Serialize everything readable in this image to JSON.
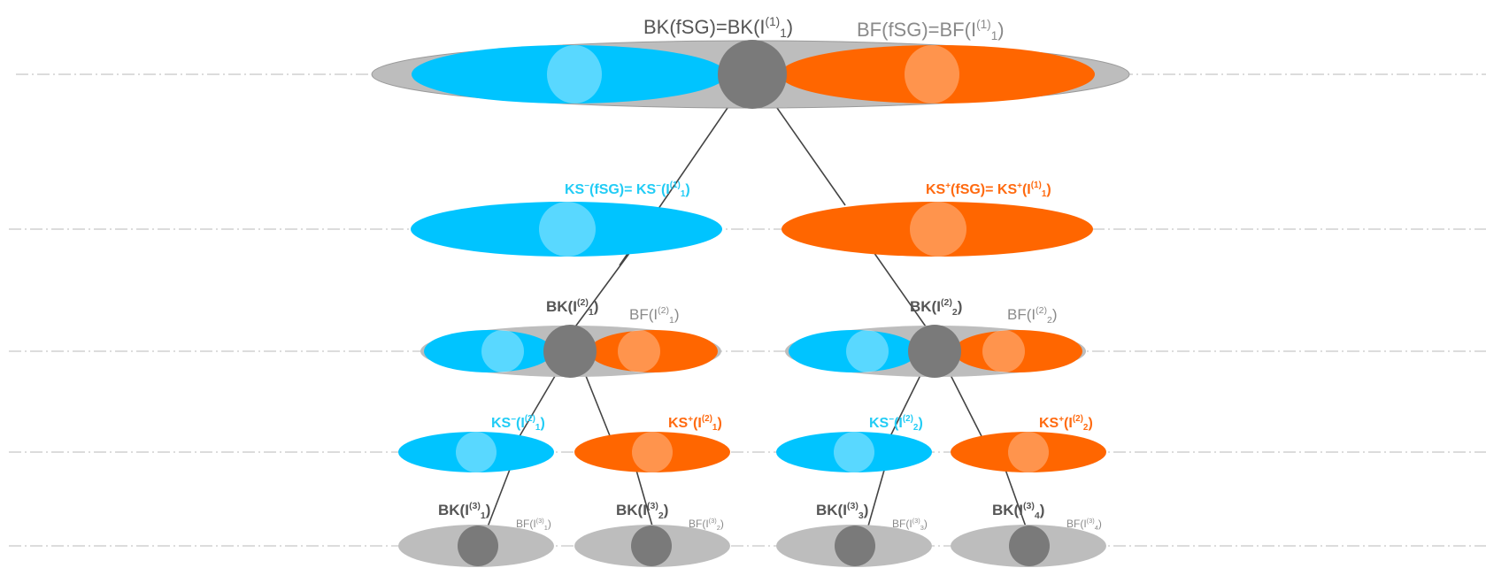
{
  "colors": {
    "blue": "#00C4FF",
    "orange": "#FF6600",
    "node_gray": "#7A7A7A",
    "halo_gray": "#BDBDBD",
    "text_dark": "#555555",
    "text_gray": "#7F7F7F",
    "dash_line": "#C8C8C8",
    "edge": "#444444"
  },
  "labels": {
    "root_bk": {
      "main": "BK(fSG)=BK(I",
      "sup": "(1)",
      "sub": "1",
      "close": ")"
    },
    "root_bf": {
      "main": "BF(fSG)=BF(I",
      "sup": "(1)",
      "sub": "1",
      "close": ")"
    },
    "ks_minus_root": {
      "main": "KS",
      "sup1": "−",
      "mid": "(fSG)= KS",
      "sup2": "−",
      "tail": "(I",
      "sup3": "(1)",
      "sub": "1",
      "close": ")"
    },
    "ks_plus_root": {
      "main": "KS",
      "sup1": "+",
      "mid": "(fSG)= KS",
      "sup2": "+",
      "tail": "(I",
      "sup3": "(1)",
      "sub": "1",
      "close": ")"
    },
    "l2_bk_1": {
      "main": "BK(I",
      "sup": "(2)",
      "sub": "1",
      "close": ")"
    },
    "l2_bf_1": {
      "main": "BF(I",
      "sup": "(2)",
      "sub": "1",
      "close": ")"
    },
    "l2_bk_2": {
      "main": "BK(I",
      "sup": "(2)",
      "sub": "2",
      "close": ")"
    },
    "l2_bf_2": {
      "main": "BF(I",
      "sup": "(2)",
      "sub": "2",
      "close": ")"
    },
    "ks_minus_1": {
      "main": "KS",
      "sup1": "−",
      "tail": "(I",
      "sup2": "(2)",
      "sub": "1",
      "close": ")"
    },
    "ks_plus_1": {
      "main": "KS",
      "sup1": "+",
      "tail": "(I",
      "sup2": "(2)",
      "sub": "1",
      "close": ")"
    },
    "ks_minus_2": {
      "main": "KS",
      "sup1": "−",
      "tail": "(I",
      "sup2": "(2)",
      "sub": "2",
      "close": ")"
    },
    "ks_plus_2": {
      "main": "KS",
      "sup1": "+",
      "tail": "(I",
      "sup2": "(2)",
      "sub": "2",
      "close": ")"
    },
    "l3_bk_1": {
      "main": "BK(I",
      "sup": "(3)",
      "sub": "1",
      "close": ")"
    },
    "l3_bf_1": {
      "main": "BF(I",
      "sup": "(3)",
      "sub": "1",
      "close": ")"
    },
    "l3_bk_2": {
      "main": "BK(I",
      "sup": "(3)",
      "sub": "2",
      "close": ")"
    },
    "l3_bf_2": {
      "main": "BF(I",
      "sup": "(3)",
      "sub": "2",
      "close": ")"
    },
    "l3_bk_3": {
      "main": "BK(I",
      "sup": "(3)",
      "sub": "3",
      "close": ")"
    },
    "l3_bf_3": {
      "main": "BF(I",
      "sup": "(3)",
      "sub": "3",
      "close": ")"
    },
    "l3_bk_4": {
      "main": "BK(I",
      "sup": "(3)",
      "sub": "4",
      "close": ")"
    },
    "l3_bf_4": {
      "main": "BF(I",
      "sup": "(3)",
      "sub": "4",
      "close": ")"
    }
  }
}
